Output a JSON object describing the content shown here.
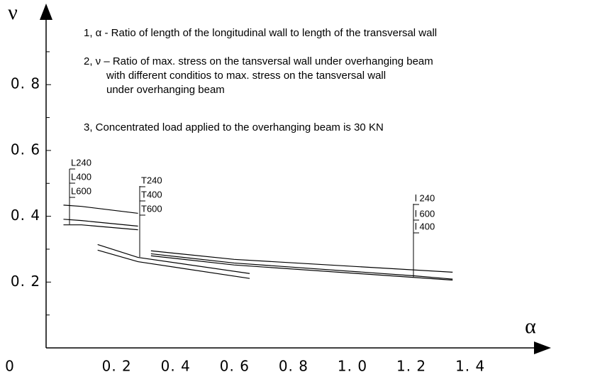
{
  "chart_data": {
    "type": "line",
    "x_label": "α",
    "y_label": "ν",
    "origin_label": "0",
    "notes": [
      "1,  α - Ratio of length of the longitudinal wall to length of the transversal wall",
      "2,  ν – Ratio of max. stress on the tansversal wall under overhanging beam",
      "with different conditios to max. stress on the tansversal wall",
      "under overhanging beam",
      "3,  Concentrated load applied to the overhanging beam is 30 KN"
    ],
    "xlim": [
      -0.04,
      1.65
    ],
    "ylim": [
      0,
      1.04
    ],
    "xticks": [
      {
        "value": 0.2,
        "label": "0. 2"
      },
      {
        "value": 0.4,
        "label": "0. 4"
      },
      {
        "value": 0.6,
        "label": "0. 6"
      },
      {
        "value": 0.8,
        "label": "0. 8"
      },
      {
        "value": 1.0,
        "label": "1. 0"
      },
      {
        "value": 1.2,
        "label": "1. 2"
      },
      {
        "value": 1.4,
        "label": "1. 4"
      }
    ],
    "yticks": [
      {
        "value": 0.2,
        "label": "0. 2"
      },
      {
        "value": 0.4,
        "label": "0. 4"
      },
      {
        "value": 0.6,
        "label": "0. 6"
      },
      {
        "value": 0.8,
        "label": "0. 8"
      }
    ],
    "yminorticks": [
      0.1,
      0.3,
      0.5,
      0.7,
      0.9
    ],
    "color": "#000000",
    "series": [
      {
        "x": [
          0.019,
          0.08,
          0.272
        ],
        "values": [
          0.434,
          0.43,
          0.409
        ]
      },
      {
        "x": [
          0.019,
          0.08,
          0.272
        ],
        "values": [
          0.391,
          0.387,
          0.37
        ]
      },
      {
        "x": [
          0.019,
          0.08,
          0.272
        ],
        "values": [
          0.374,
          0.374,
          0.359
        ]
      },
      {
        "x": [
          0.135,
          0.272,
          0.651
        ],
        "values": [
          0.314,
          0.275,
          0.226
        ]
      },
      {
        "x": [
          0.135,
          0.272,
          0.651
        ],
        "values": [
          0.297,
          0.262,
          0.211
        ]
      },
      {
        "x": [
          0.316,
          0.598,
          1.34
        ],
        "values": [
          0.295,
          0.269,
          0.23
        ]
      },
      {
        "x": [
          0.316,
          0.598,
          1.21,
          1.34
        ],
        "values": [
          0.286,
          0.258,
          0.219,
          0.209
        ]
      },
      {
        "x": [
          0.316,
          0.598,
          1.34
        ],
        "values": [
          0.28,
          0.252,
          0.206
        ]
      }
    ],
    "line_groups": [
      {
        "labels": [
          "L240",
          "L400",
          "L600"
        ]
      },
      {
        "labels": [
          "T240",
          "T400",
          "T600"
        ]
      },
      {
        "labels": [
          "l 240",
          "l 600",
          "l 400"
        ]
      }
    ]
  }
}
